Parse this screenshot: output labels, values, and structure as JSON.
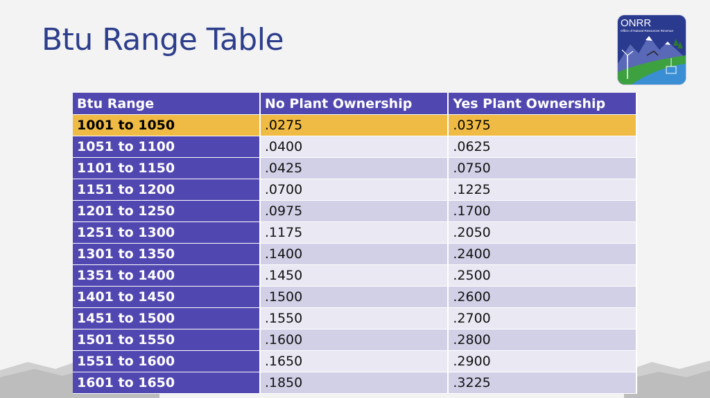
{
  "title": "Btu Range Table",
  "logo": {
    "name": "ONRR",
    "subtitle": "Office of Natural Resources Revenue"
  },
  "colors": {
    "title": "#2d3e8c",
    "header_bg": "#5147b0",
    "highlight_bg": "#f0bb44",
    "row_odd": "#d2d0e6",
    "row_even": "#e9e8f3"
  },
  "table": {
    "headers": [
      "Btu Range",
      "No Plant Ownership",
      "Yes Plant Ownership"
    ],
    "rows": [
      {
        "range": "1001 to 1050",
        "no": ".0275",
        "yes": ".0375"
      },
      {
        "range": "1051 to 1100",
        "no": ".0400",
        "yes": ".0625"
      },
      {
        "range": "1101 to 1150",
        "no": ".0425",
        "yes": ".0750"
      },
      {
        "range": "1151 to 1200",
        "no": ".0700",
        "yes": ".1225"
      },
      {
        "range": "1201 to 1250",
        "no": ".0975",
        "yes": ".1700"
      },
      {
        "range": "1251 to 1300",
        "no": ".1175",
        "yes": ".2050"
      },
      {
        "range": "1301 to 1350",
        "no": ".1400",
        "yes": ".2400"
      },
      {
        "range": "1351 to 1400",
        "no": ".1450",
        "yes": ".2500"
      },
      {
        "range": "1401 to 1450",
        "no": ".1500",
        "yes": ".2600"
      },
      {
        "range": "1451 to 1500",
        "no": ".1550",
        "yes": ".2700"
      },
      {
        "range": "1501 to 1550",
        "no": ".1600",
        "yes": ".2800"
      },
      {
        "range": "1551 to 1600",
        "no": ".1650",
        "yes": ".2900"
      },
      {
        "range": "1601 to 1650",
        "no": ".1850",
        "yes": ".3225"
      }
    ],
    "highlighted_row": 0
  }
}
